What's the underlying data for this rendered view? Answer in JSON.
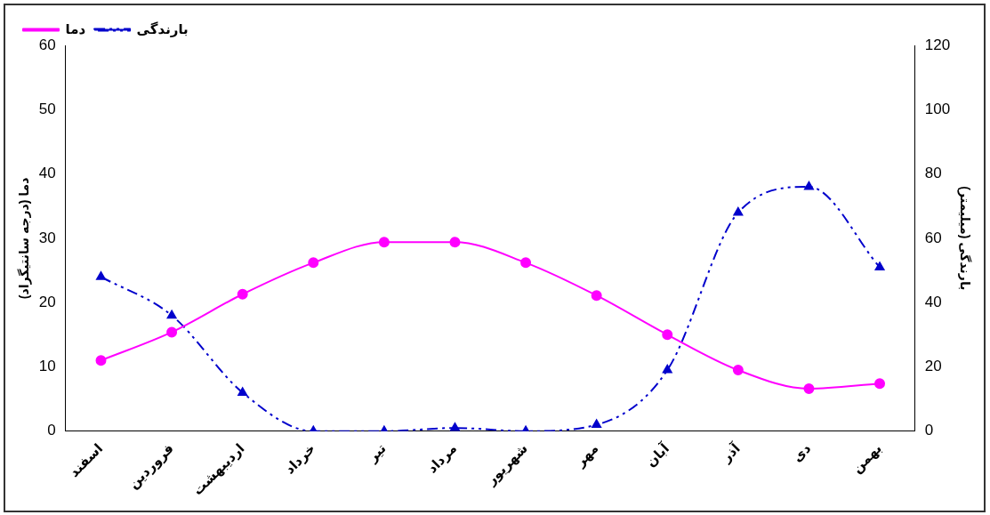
{
  "chart_data": {
    "type": "line",
    "ylabel": "دما (درجه سانتیگراد)",
    "y2label": "بارندگی (میلیمتر)",
    "categories": [
      "اسفند",
      "فروردین",
      "اردیبهشت",
      "خرداد",
      "تیر",
      "مرداد",
      "شهریور",
      "مهر",
      "آبان",
      "آذر",
      "دی",
      "بهمن"
    ],
    "series": [
      {
        "name": "دما",
        "color": "#ff00ff",
        "marker": "circle",
        "line_style": "solid",
        "values": [
          11.0,
          15.4,
          21.3,
          26.2,
          29.4,
          29.4,
          26.2,
          21.1,
          15.0,
          9.5,
          6.6,
          7.4
        ]
      },
      {
        "name": "بارندگی",
        "color": "#0000cc",
        "marker": "triangle",
        "line_style": "dashed",
        "axis": "y2",
        "values": [
          48,
          36,
          12,
          0,
          0,
          1,
          0,
          2,
          19,
          68,
          76,
          51
        ]
      }
    ],
    "ylim": [
      0,
      60
    ],
    "yticks": [
      0,
      10,
      20,
      30,
      40,
      50,
      60
    ],
    "y2lim": [
      0,
      120
    ],
    "y2ticks": [
      0,
      20,
      40,
      60,
      80,
      100,
      120
    ],
    "grid": false,
    "legend": "top left"
  }
}
